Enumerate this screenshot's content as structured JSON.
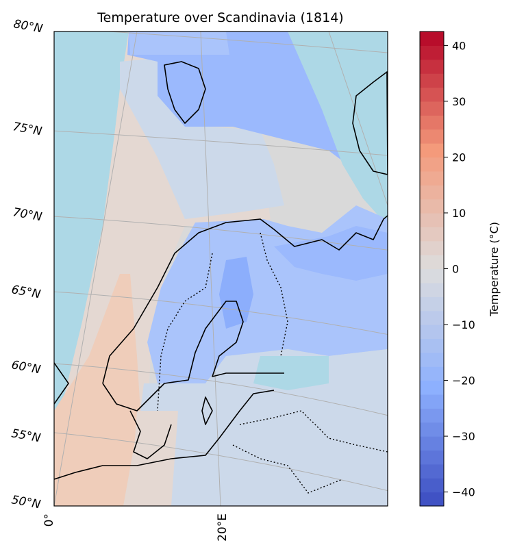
{
  "chart_data": {
    "type": "heatmap",
    "title": "Temperature over Scandinavia (1814)",
    "colorbar": {
      "label": "Temperature (°C)",
      "range": [
        -42.5,
        42.5
      ],
      "step": 2.5,
      "ticks": [
        40,
        30,
        20,
        10,
        0,
        -10,
        -20,
        -30,
        -40
      ],
      "tick_labels": [
        "40",
        "30",
        "20",
        "10",
        "0",
        "−10",
        "−20",
        "−30",
        "−40"
      ],
      "colormap": "coolwarm"
    },
    "lat_labels": [
      "80°N",
      "75°N",
      "70°N",
      "65°N",
      "60°N",
      "55°N",
      "50°N"
    ],
    "lon_labels": [
      "0°",
      "20°E"
    ],
    "grid": true,
    "colors": {
      "lightblue": "#add8e6",
      "pale": "#ccd9ea",
      "beige": "#e4d8d2",
      "peach": "#efcdba",
      "blue_light": "#aac4fb",
      "blue_mid": "#9bb9fd",
      "blue_strong": "#8caefc",
      "grey": "#d9d9d9"
    }
  }
}
